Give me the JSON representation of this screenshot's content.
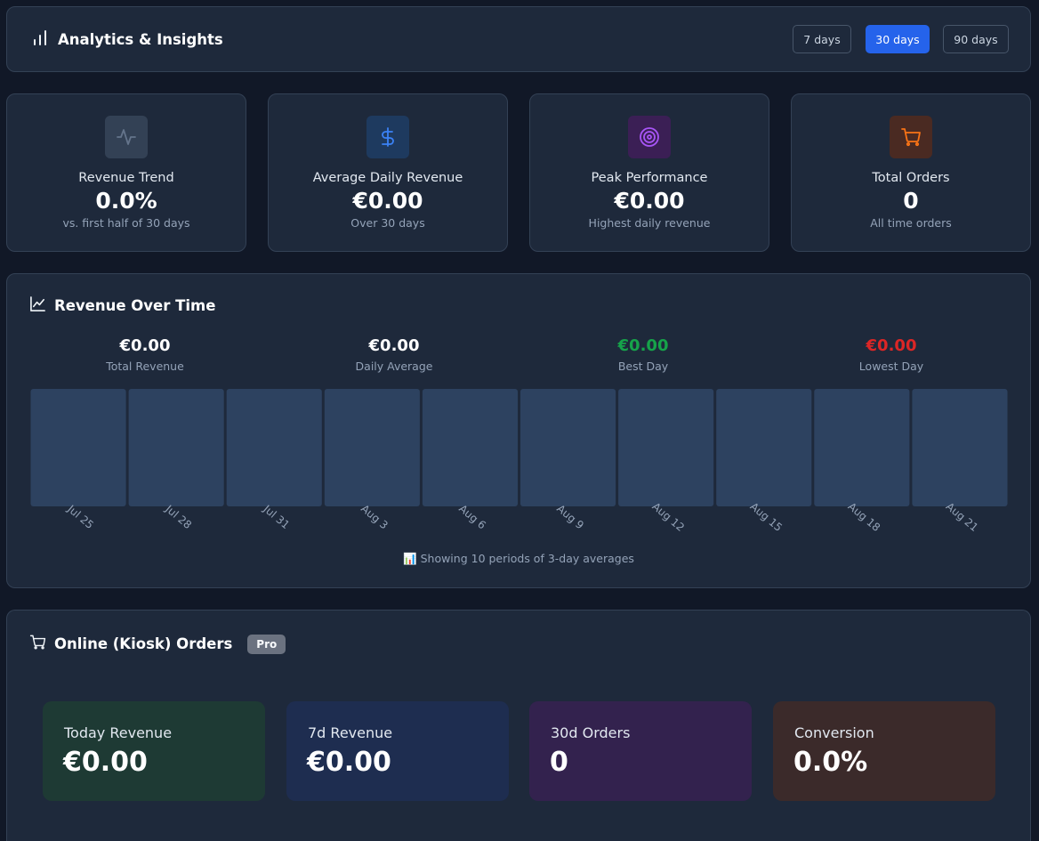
{
  "header": {
    "title": "Analytics & Insights",
    "icon": "bar-chart-icon",
    "ranges": [
      "7 days",
      "30 days",
      "90 days"
    ],
    "active_range": "30 days"
  },
  "stats": [
    {
      "label": "Revenue Trend",
      "value": "0.0%",
      "sub": "vs. first half of 30 days",
      "icon": "activity-icon",
      "color": "#94a3b8"
    },
    {
      "label": "Average Daily Revenue",
      "value": "€0.00",
      "sub": "Over 30 days",
      "icon": "dollar-icon",
      "color": "#3b82f6"
    },
    {
      "label": "Peak Performance",
      "value": "€0.00",
      "sub": "Highest daily revenue",
      "icon": "target-icon",
      "color": "#a855f7"
    },
    {
      "label": "Total Orders",
      "value": "0",
      "sub": "All time orders",
      "icon": "cart-icon",
      "color": "#f97316"
    }
  ],
  "revenue": {
    "title": "Revenue Over Time",
    "icon": "line-chart-icon",
    "summary": [
      {
        "value": "€0.00",
        "label": "Total Revenue"
      },
      {
        "value": "€0.00",
        "label": "Daily Average"
      },
      {
        "value": "€0.00",
        "label": "Best Day"
      },
      {
        "value": "€0.00",
        "label": "Lowest Day"
      }
    ],
    "footnote": "📊 Showing 10 periods of 3-day averages"
  },
  "chart_data": {
    "type": "bar",
    "categories": [
      "Jul 25",
      "Jul 28",
      "Jul 31",
      "Aug 3",
      "Aug 6",
      "Aug 9",
      "Aug 12",
      "Aug 15",
      "Aug 18",
      "Aug 21"
    ],
    "values": [
      0,
      0,
      0,
      0,
      0,
      0,
      0,
      0,
      0,
      0
    ],
    "title": "",
    "xlabel": "",
    "ylabel": "",
    "grid": false,
    "bar_color": "#2d4260"
  },
  "orders": {
    "title": "Online (Kiosk) Orders",
    "badge": "Pro",
    "icon": "cart-icon",
    "cards": [
      {
        "label": "Today Revenue",
        "value": "€0.00",
        "color": "#1e3a34"
      },
      {
        "label": "7d Revenue",
        "value": "€0.00",
        "color": "#1e2d50"
      },
      {
        "label": "30d Orders",
        "value": "0",
        "color": "#33224e"
      },
      {
        "label": "Conversion",
        "value": "0.0%",
        "color": "#3b2a2a"
      }
    ]
  }
}
